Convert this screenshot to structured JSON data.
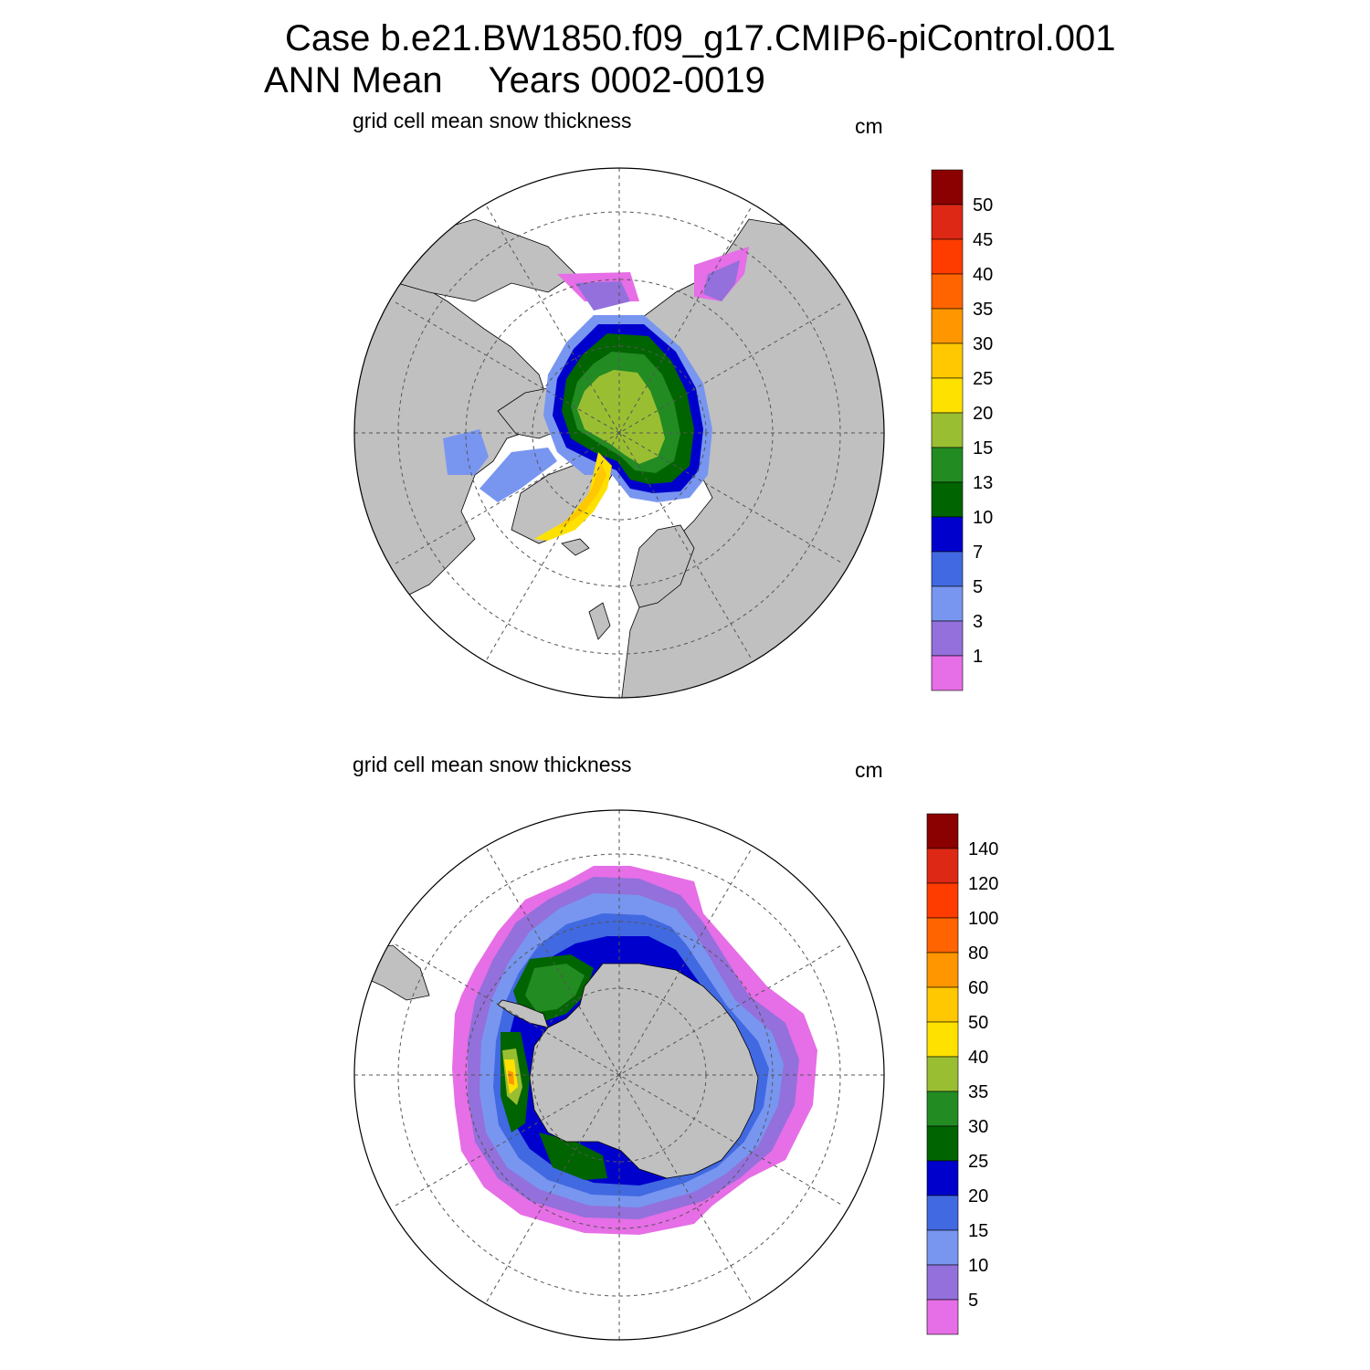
{
  "title": {
    "line1": "Case b.e21.BW1850.f09_g17.CMIP6-piControl.001",
    "line2_a": "ANN Mean",
    "line2_b": "Years 0002-0019"
  },
  "panels": [
    {
      "id": "nh",
      "label": "grid cell mean snow thickness",
      "units": "cm",
      "hemisphere": "north",
      "colorbar": {
        "levels": [
          "50",
          "45",
          "40",
          "35",
          "30",
          "25",
          "20",
          "15",
          "13",
          "10",
          "7",
          "5",
          "3",
          "1"
        ],
        "colors": [
          "#8b0000",
          "#dc2814",
          "#ff3c00",
          "#ff6400",
          "#ff9600",
          "#ffc800",
          "#ffe100",
          "#9abe32",
          "#228b22",
          "#006400",
          "#0000cd",
          "#4169e1",
          "#7896f0",
          "#9370db",
          "#e66ee6"
        ]
      }
    },
    {
      "id": "sh",
      "label": "grid cell mean snow thickness",
      "units": "cm",
      "hemisphere": "south",
      "colorbar": {
        "levels": [
          "140",
          "120",
          "100",
          "80",
          "60",
          "50",
          "40",
          "35",
          "30",
          "25",
          "20",
          "15",
          "10",
          "5"
        ],
        "colors": [
          "#8b0000",
          "#dc2814",
          "#ff3c00",
          "#ff6400",
          "#ff9600",
          "#ffc800",
          "#ffe100",
          "#9abe32",
          "#228b22",
          "#006400",
          "#0000cd",
          "#4169e1",
          "#7896f0",
          "#9370db",
          "#e66ee6"
        ]
      }
    }
  ],
  "colors": {
    "land": "#c0c0c0",
    "ocean": "#ffffff",
    "grid": "#555555"
  }
}
